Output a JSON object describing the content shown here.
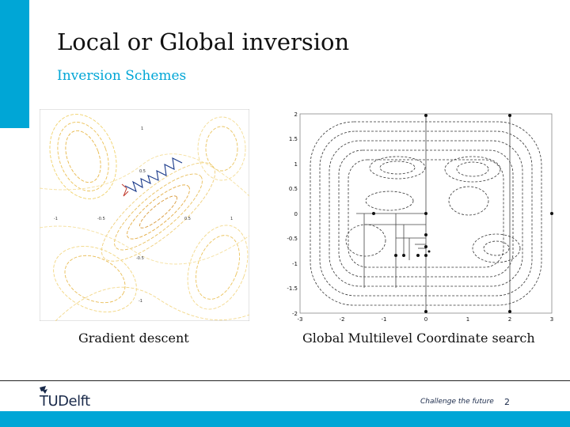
{
  "slide": {
    "title": "Local or Global inversion",
    "subtitle": "Inversion Schemes",
    "left_caption": "Gradient descent",
    "right_caption": "Global Multilevel Coordinate search"
  },
  "left_plot": {
    "labels": [
      "1",
      "0.5",
      "-1",
      "-0.5",
      "0.5",
      "1",
      "-0.5",
      "-1"
    ]
  },
  "right_plot": {
    "x_ticks": [
      "-3",
      "-2",
      "-1",
      "0",
      "1",
      "2",
      "3"
    ],
    "y_ticks": [
      "2",
      "1.5",
      "1",
      "0.5",
      "0",
      "-0.5",
      "-1",
      "-1.5",
      "-2"
    ]
  },
  "footer": {
    "logo_text": "TUDelft",
    "tagline": "Challenge the future",
    "page_number": "2"
  },
  "colors": {
    "accent": "#00a6d6",
    "contour_warm": "#e8b84a",
    "path": "#1a3a8a"
  }
}
